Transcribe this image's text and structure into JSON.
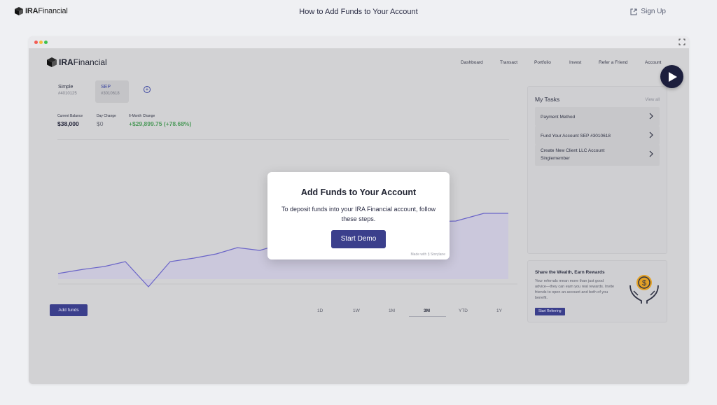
{
  "topbar": {
    "logo_bold": "IRA",
    "logo_light": "Financial",
    "title": "How to Add Funds to Your Account",
    "signup_label": "Sign Up"
  },
  "app": {
    "logo_bold": "IRA",
    "logo_light": "Financial",
    "nav": [
      "Dashboard",
      "Transact",
      "Portfolio",
      "Invest",
      "Refer a Friend",
      "Account"
    ],
    "accounts": [
      {
        "name": "Simple",
        "number": "#4010125"
      },
      {
        "name": "SEP",
        "number": "#3010618"
      }
    ],
    "add_account_symbol": "+",
    "stats": {
      "balance_label": "Current Balance",
      "balance_value": "$38,000",
      "day_label": "Day Change",
      "day_value": "$0",
      "six_label": "6-Month Change",
      "six_value": "+$29,899.75 (+78.68%)"
    },
    "add_funds_label": "Add funds",
    "ranges": [
      "1D",
      "1W",
      "1M",
      "3M",
      "YTD",
      "1Y"
    ],
    "active_range": "3M",
    "tasks": {
      "title": "My Tasks",
      "view_all": "View all",
      "items": [
        "Payment Method",
        "Fund Your Account SEP #3010618",
        "Create New Client LLC Account Singlemember"
      ]
    },
    "rewards": {
      "title": "Share the Wealth, Earn Rewards",
      "description": "Your referrals mean more than just good advice—they can earn you real rewards. Invite friends to open an account and both of you benefit.",
      "button": "Start Referring"
    }
  },
  "modal": {
    "title": "Add Funds to Your Account",
    "description": "To deposit funds into your IRA Financial account, follow these steps.",
    "button": "Start Demo",
    "made_with": "Made with § Storylane"
  },
  "colors": {
    "accent": "#3b3f8c",
    "positive": "#4e9a5c",
    "chart_line": "#6a64c8"
  },
  "icons": [
    "cube-logo-icon",
    "external-link-icon",
    "expand-icon",
    "plus-circle-icon",
    "chevron-right-icon",
    "money-hands-icon",
    "play-icon"
  ]
}
